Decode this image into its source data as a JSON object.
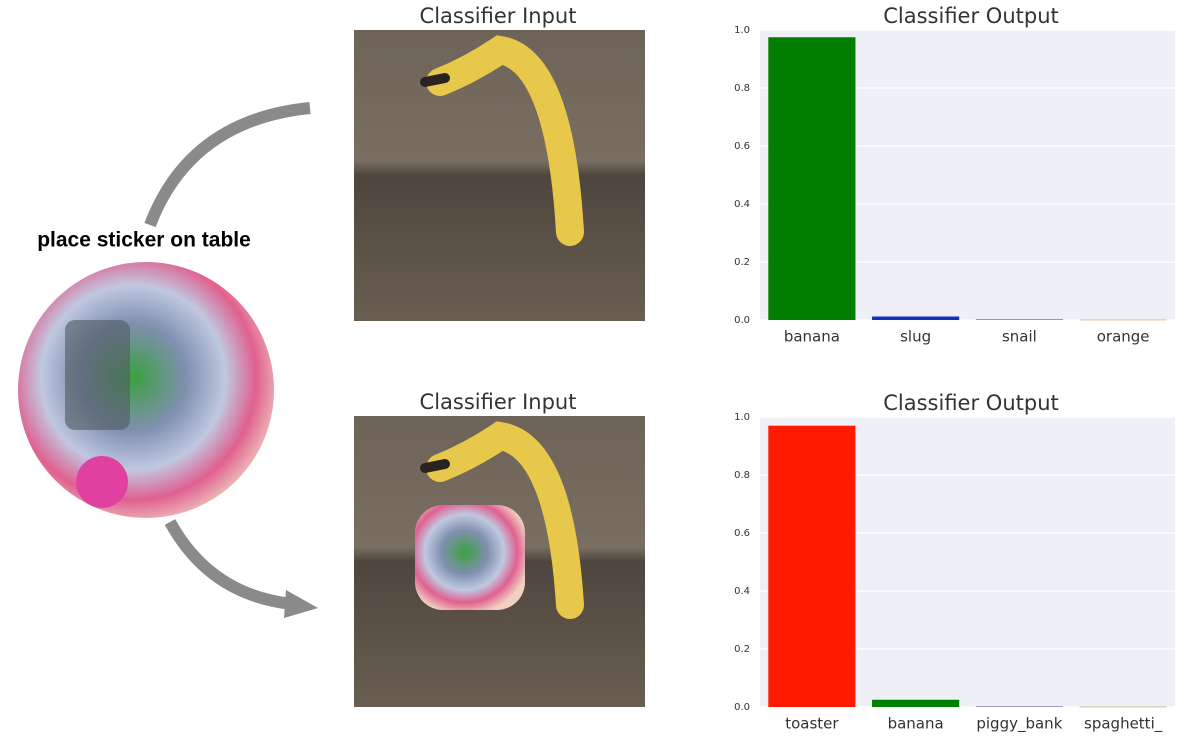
{
  "annotation": "place sticker on table",
  "image_titles": [
    "Classifier Input",
    "Classifier Input"
  ],
  "chart_data": [
    {
      "type": "bar",
      "title": "Classifier Output",
      "categories": [
        "banana",
        "slug",
        "snail",
        "orange"
      ],
      "values": [
        0.975,
        0.012,
        0.002,
        0.001
      ],
      "colors": [
        "#007f00",
        "#1030c0",
        "#b03030",
        "#d08020"
      ],
      "ylim": [
        0,
        1
      ],
      "yticks": [
        {
          "value": 0,
          "label": "0.0"
        },
        0.2,
        0.4,
        0.6,
        0.8,
        {
          "value": 1,
          "label": "1.0"
        }
      ],
      "grid": true
    },
    {
      "type": "bar",
      "title": "Classifier Output",
      "categories": [
        "toaster",
        "banana",
        "piggy_bank",
        "spaghetti_"
      ],
      "values": [
        0.97,
        0.025,
        0.002,
        0.001
      ],
      "colors": [
        "#ff1a00",
        "#007f00",
        "#6060a0",
        "#a08040"
      ],
      "ylim": [
        0,
        1
      ],
      "yticks": [
        {
          "value": 0,
          "label": "0.0"
        },
        0.2,
        0.4,
        0.6,
        0.8,
        {
          "value": 1,
          "label": "1.0"
        }
      ],
      "grid": true
    }
  ]
}
